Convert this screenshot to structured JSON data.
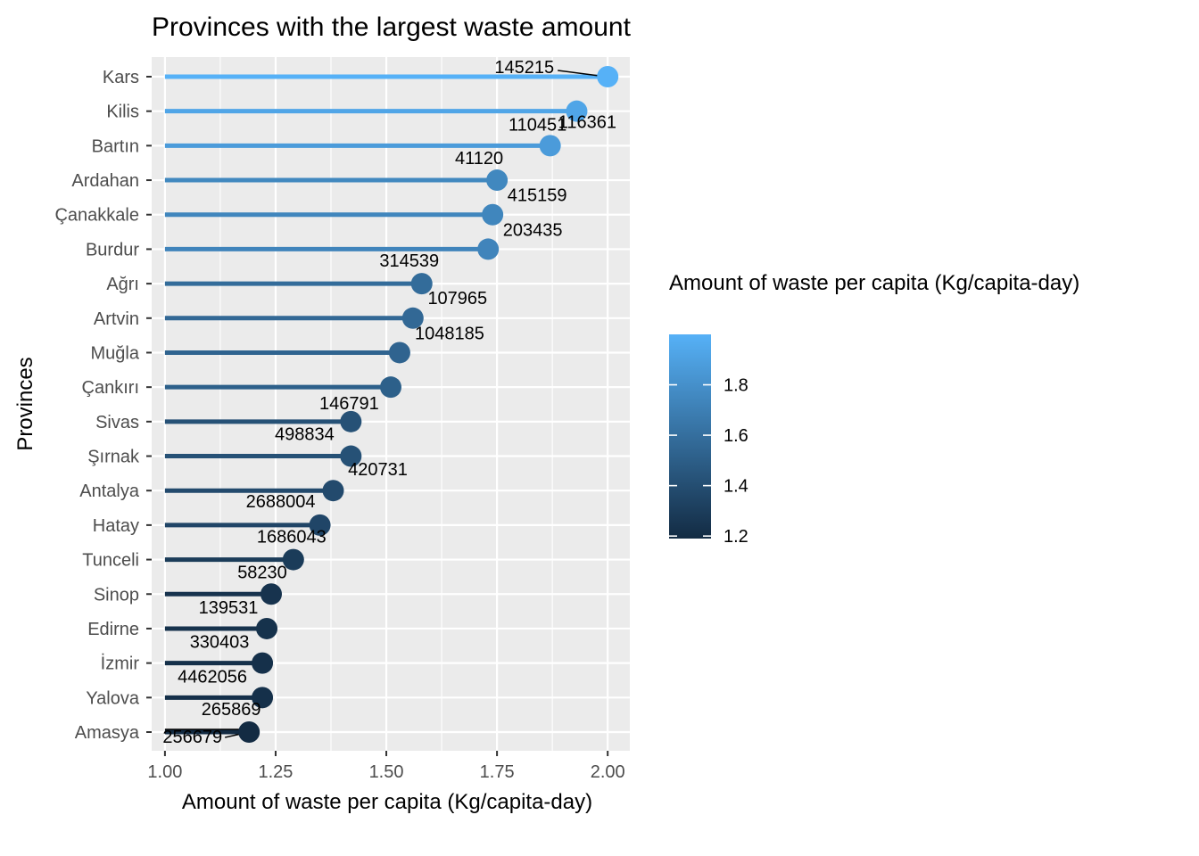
{
  "chart_data": {
    "type": "lollipop",
    "title": "Provinces with the largest waste amount",
    "xlabel": "Amount of waste per capita (Kg/capita-day)",
    "ylabel": "Provinces",
    "xlim": [
      0.97,
      2.05
    ],
    "xticks": [
      1.0,
      1.25,
      1.5,
      1.75,
      2.0
    ],
    "xtick_labels": [
      "1.00",
      "1.25",
      "1.50",
      "1.75",
      "2.00"
    ],
    "baseline": 1.0,
    "grid": true,
    "points": [
      {
        "province": "Kars",
        "value": 2.0,
        "label": "145215"
      },
      {
        "province": "Kilis",
        "value": 1.93,
        "label": "116361"
      },
      {
        "province": "Bartın",
        "value": 1.87,
        "label": "110451"
      },
      {
        "province": "Ardahan",
        "value": 1.75,
        "label": "41120"
      },
      {
        "province": "Çanakkale",
        "value": 1.74,
        "label": "415159"
      },
      {
        "province": "Burdur",
        "value": 1.73,
        "label": "203435"
      },
      {
        "province": "Ağrı",
        "value": 1.58,
        "label": "314539"
      },
      {
        "province": "Artvin",
        "value": 1.56,
        "label": "107965"
      },
      {
        "province": "Muğla",
        "value": 1.53,
        "label": "1048185"
      },
      {
        "province": "Çankırı",
        "value": 1.51,
        "label": ""
      },
      {
        "province": "Sivas",
        "value": 1.42,
        "label": "146791"
      },
      {
        "province": "Şırnak",
        "value": 1.42,
        "label": "498834"
      },
      {
        "province": "Antalya",
        "value": 1.38,
        "label": "420731"
      },
      {
        "province": "Hatay",
        "value": 1.35,
        "label": "2688004"
      },
      {
        "province": "Tunceli",
        "value": 1.29,
        "label": "1686043"
      },
      {
        "province": "Sinop",
        "value": 1.24,
        "label": "58230"
      },
      {
        "province": "Edirne",
        "value": 1.23,
        "label": "139531"
      },
      {
        "province": "İzmir",
        "value": 1.22,
        "label": "330403"
      },
      {
        "province": "Yalova",
        "value": 1.22,
        "label": "4462056"
      },
      {
        "province": "Amasya",
        "value": 1.19,
        "label": "265869"
      }
    ],
    "extra_labels": [
      {
        "text": "256679",
        "near": "Amasya"
      }
    ],
    "legend": {
      "title": "Amount of waste per capita (Kg/capita-day)",
      "position": "right",
      "min": 1.19,
      "max": 2.0,
      "ticks": [
        1.2,
        1.4,
        1.6,
        1.8
      ],
      "tick_labels": [
        "1.2",
        "1.4",
        "1.6",
        "1.8"
      ],
      "color_low": "#132B43",
      "color_high": "#56B1F7"
    },
    "colors": {
      "panel": "#ebebeb",
      "grid": "#ffffff",
      "low": "#132B43",
      "high": "#56B1F7"
    }
  }
}
